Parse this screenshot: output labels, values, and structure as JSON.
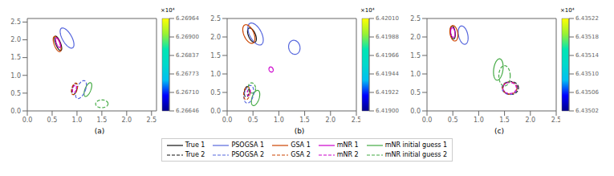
{
  "chart_data": [
    {
      "type": "ellipse",
      "xlabel": "(a)",
      "legend": "bottom",
      "xlim": [
        0,
        2.6
      ],
      "ylim": [
        0,
        2.6
      ],
      "xticks": [
        {
          "value": 0,
          "label": "0.0"
        },
        0.5,
        {
          "value": 1,
          "label": "1.0"
        },
        1.5,
        {
          "value": 2,
          "label": "2.0"
        },
        2.5
      ],
      "yticks": [
        {
          "value": 0,
          "label": "0.0"
        },
        0.5,
        {
          "value": 1,
          "label": "1.0"
        },
        1.5,
        {
          "value": 2,
          "label": "2.0"
        },
        2.5
      ],
      "colorbar": {
        "lim": [
          6.26646,
          6.26964
        ],
        "ticks": [
          6.26646,
          {
            "value": 6.267096,
            "label": "6.26710"
          },
          {
            "value": 6.267732,
            "label": "6.26773"
          },
          {
            "value": 6.268368,
            "label": "6.26837"
          },
          {
            "value": 6.269004,
            "label": "6.26900"
          },
          6.26964
        ],
        "label": "×10⁴",
        "colors": [
          "#00008c",
          "#0000ff",
          "#00bff2",
          "#00d9cc",
          "#00e6b3",
          "#99f233",
          "#ffff00"
        ]
      },
      "series": [
        {
          "name": "True 1",
          "color": "#111111",
          "line_style": "solid",
          "ellipses": [
            {
              "cx": 0.62,
              "cy": 1.9,
              "w": 0.1,
              "h": 0.42,
              "angle": 15
            }
          ]
        },
        {
          "name": "PSOGSA 1",
          "color": "#5566dd",
          "line_style": "solid",
          "ellipses": [
            {
              "cx": 0.8,
              "cy": 2.05,
              "w": 0.2,
              "h": 0.6,
              "angle": 20
            }
          ]
        },
        {
          "name": "GSA 1",
          "color": "#cc4400",
          "line_style": "solid",
          "ellipses": [
            {
              "cx": 0.6,
              "cy": 1.88,
              "w": 0.12,
              "h": 0.44,
              "angle": 14
            }
          ]
        },
        {
          "name": "mNR 1",
          "color": "#cc00cc",
          "line_style": "solid",
          "ellipses": [
            {
              "cx": 0.62,
              "cy": 1.92,
              "w": 0.07,
              "h": 0.28,
              "angle": 14
            }
          ]
        },
        {
          "name": "mNR initial guess 1",
          "color": "#44aa44",
          "line_style": "solid",
          "ellipses": [
            {
              "cx": 1.22,
              "cy": 0.6,
              "w": 0.12,
              "h": 0.4,
              "angle": -15
            }
          ]
        },
        {
          "name": "True 2",
          "color": "#111111",
          "line_style": "dashed",
          "ellipses": [
            {
              "cx": 0.95,
              "cy": 0.62,
              "w": 0.1,
              "h": 0.32,
              "angle": -10
            }
          ]
        },
        {
          "name": "PSOGSA 2",
          "color": "#5566dd",
          "line_style": "dashed",
          "ellipses": [
            {
              "cx": 1.08,
              "cy": 0.6,
              "w": 0.18,
              "h": 0.52,
              "angle": -15
            }
          ]
        },
        {
          "name": "GSA 2",
          "color": "#cc4400",
          "line_style": "dashed",
          "ellipses": [
            {
              "cx": 0.95,
              "cy": 0.62,
              "w": 0.11,
              "h": 0.33,
              "angle": -10
            }
          ]
        },
        {
          "name": "mNR 2",
          "color": "#cc00cc",
          "line_style": "dashed",
          "ellipses": [
            {
              "cx": 0.95,
              "cy": 0.62,
              "w": 0.07,
              "h": 0.22,
              "angle": -10
            }
          ]
        },
        {
          "name": "mNR initial guess 2",
          "color": "#44aa44",
          "line_style": "dashed",
          "ellipses": [
            {
              "cx": 1.5,
              "cy": 0.2,
              "w": 0.25,
              "h": 0.22,
              "angle": 5
            }
          ]
        }
      ]
    },
    {
      "type": "ellipse",
      "xlabel": "(b)",
      "legend": "bottom",
      "xlim": [
        0,
        2.5
      ],
      "ylim": [
        0,
        2.5
      ],
      "xticks": [
        {
          "value": 0,
          "label": "0.0"
        },
        0.5,
        {
          "value": 1,
          "label": "1.0"
        },
        1.5,
        {
          "value": 2,
          "label": "2.0"
        },
        2.5
      ],
      "yticks": [
        {
          "value": 0,
          "label": "0.0"
        },
        0.5,
        {
          "value": 1,
          "label": "1.0"
        },
        1.5,
        {
          "value": 2,
          "label": "2.0"
        },
        2.5
      ],
      "colorbar": {
        "lim": [
          6.419,
          6.4201
        ],
        "ticks": [
          {
            "value": 6.419,
            "label": "6.41900"
          },
          6.41922,
          6.41944,
          6.41966,
          6.41988,
          {
            "value": 6.4201,
            "label": "6.42010"
          }
        ],
        "label": "×10⁴",
        "colors": [
          "#00008c",
          "#0000ff",
          "#00bff2",
          "#00d9cc",
          "#00e6b3",
          "#99f233",
          "#ffff00"
        ]
      },
      "series": [
        {
          "name": "True 1",
          "color": "#111111",
          "line_style": "solid",
          "ellipses": [
            {
              "cx": 0.48,
              "cy": 2.05,
              "w": 0.14,
              "h": 0.4,
              "angle": 15
            }
          ]
        },
        {
          "name": "PSOGSA 1",
          "color": "#5566dd",
          "line_style": "solid",
          "ellipses": [
            {
              "cx": 0.55,
              "cy": 2.08,
              "w": 0.24,
              "h": 0.62,
              "angle": 18
            },
            {
              "cx": 1.3,
              "cy": 1.72,
              "w": 0.22,
              "h": 0.38,
              "angle": 5
            }
          ]
        },
        {
          "name": "GSA 1",
          "color": "#cc4400",
          "line_style": "solid",
          "ellipses": [
            {
              "cx": 0.42,
              "cy": 2.08,
              "w": 0.2,
              "h": 0.52,
              "angle": 15
            }
          ]
        },
        {
          "name": "mNR 1",
          "color": "#cc00cc",
          "line_style": "solid",
          "ellipses": [
            {
              "cx": 0.85,
              "cy": 1.12,
              "w": 0.08,
              "h": 0.14,
              "angle": 10
            }
          ]
        },
        {
          "name": "mNR initial guess 1",
          "color": "#44aa44",
          "line_style": "solid",
          "ellipses": [
            {
              "cx": 0.55,
              "cy": 0.35,
              "w": 0.14,
              "h": 0.42,
              "angle": -12
            }
          ]
        },
        {
          "name": "True 2",
          "color": "#111111",
          "line_style": "dashed",
          "ellipses": [
            {
              "cx": 0.38,
              "cy": 0.52,
              "w": 0.09,
              "h": 0.28,
              "angle": -5
            }
          ]
        },
        {
          "name": "PSOGSA 2",
          "color": "#5566dd",
          "line_style": "dashed",
          "ellipses": [
            {
              "cx": 0.42,
              "cy": 0.45,
              "w": 0.18,
              "h": 0.48,
              "angle": -8
            }
          ]
        },
        {
          "name": "GSA 2",
          "color": "#cc4400",
          "line_style": "dashed",
          "ellipses": [
            {
              "cx": 0.38,
              "cy": 0.48,
              "w": 0.12,
              "h": 0.35,
              "angle": -5
            }
          ]
        },
        {
          "name": "mNR 2",
          "color": "#cc00cc",
          "line_style": "dashed",
          "ellipses": [
            {
              "cx": 0.42,
              "cy": 0.5,
              "w": 0.06,
              "h": 0.18,
              "angle": -5
            }
          ]
        },
        {
          "name": "mNR initial guess 2",
          "color": "#44aa44",
          "line_style": "dashed",
          "ellipses": [
            {
              "cx": 0.48,
              "cy": 0.62,
              "w": 0.14,
              "h": 0.28,
              "angle": 5
            }
          ]
        }
      ]
    },
    {
      "type": "ellipse",
      "xlabel": "(c)",
      "legend": "bottom",
      "xlim": [
        0,
        2.5
      ],
      "ylim": [
        0,
        2.5
      ],
      "xticks": [
        {
          "value": 0,
          "label": "0.0"
        },
        0.5,
        {
          "value": 1,
          "label": "1.0"
        },
        1.5,
        {
          "value": 2,
          "label": "2.0"
        },
        2.5
      ],
      "yticks": [
        {
          "value": 0,
          "label": "0.0"
        },
        0.5,
        {
          "value": 1,
          "label": "1.0"
        },
        1.5,
        {
          "value": 2,
          "label": "2.0"
        },
        2.5
      ],
      "colorbar": {
        "lim": [
          6.43502,
          6.43522
        ],
        "ticks": [
          6.43502,
          6.43506,
          {
            "value": 6.4351,
            "label": "6.43510"
          },
          6.43514,
          6.43518,
          6.43522
        ],
        "label": "×10⁴",
        "colors": [
          "#00008c",
          "#0000ff",
          "#00bff2",
          "#00d9cc",
          "#00e6b3",
          "#99f233",
          "#ffff00"
        ]
      },
      "series": [
        {
          "name": "True 1",
          "color": "#111111",
          "line_style": "solid",
          "ellipses": [
            {
              "cx": 0.5,
              "cy": 2.12,
              "w": 0.09,
              "h": 0.35,
              "angle": 5
            }
          ]
        },
        {
          "name": "PSOGSA 1",
          "color": "#5566dd",
          "line_style": "solid",
          "ellipses": [
            {
              "cx": 0.7,
              "cy": 2.05,
              "w": 0.18,
              "h": 0.5,
              "angle": 8
            }
          ]
        },
        {
          "name": "GSA 1",
          "color": "#cc4400",
          "line_style": "solid",
          "ellipses": [
            {
              "cx": 0.52,
              "cy": 2.1,
              "w": 0.15,
              "h": 0.42,
              "angle": 6
            }
          ]
        },
        {
          "name": "mNR 1",
          "color": "#cc00cc",
          "line_style": "solid",
          "ellipses": [
            {
              "cx": 0.5,
              "cy": 2.12,
              "w": 0.08,
              "h": 0.26,
              "angle": 5
            }
          ]
        },
        {
          "name": "mNR initial guess 1",
          "color": "#44aa44",
          "line_style": "solid",
          "ellipses": [
            {
              "cx": 1.38,
              "cy": 1.12,
              "w": 0.18,
              "h": 0.58,
              "angle": -5
            }
          ]
        },
        {
          "name": "True 2",
          "color": "#111111",
          "line_style": "dashed",
          "ellipses": [
            {
              "cx": 1.62,
              "cy": 0.62,
              "w": 0.3,
              "h": 0.35,
              "angle": 0
            }
          ]
        },
        {
          "name": "PSOGSA 2",
          "color": "#5566dd",
          "line_style": "dashed",
          "ellipses": [
            {
              "cx": 1.6,
              "cy": 0.62,
              "w": 0.3,
              "h": 0.35,
              "angle": 0
            }
          ]
        },
        {
          "name": "GSA 2",
          "color": "#cc4400",
          "line_style": "dashed",
          "ellipses": [
            {
              "cx": 1.6,
              "cy": 0.62,
              "w": 0.28,
              "h": 0.33,
              "angle": 0
            }
          ]
        },
        {
          "name": "mNR 2",
          "color": "#cc00cc",
          "line_style": "dashed",
          "ellipses": [
            {
              "cx": 1.6,
              "cy": 0.62,
              "w": 0.26,
              "h": 0.3,
              "angle": 0
            }
          ]
        },
        {
          "name": "mNR initial guess 2",
          "color": "#44aa44",
          "line_style": "dashed",
          "ellipses": [
            {
              "cx": 1.5,
              "cy": 0.95,
              "w": 0.22,
              "h": 0.55,
              "angle": 0
            }
          ]
        }
      ]
    }
  ]
}
